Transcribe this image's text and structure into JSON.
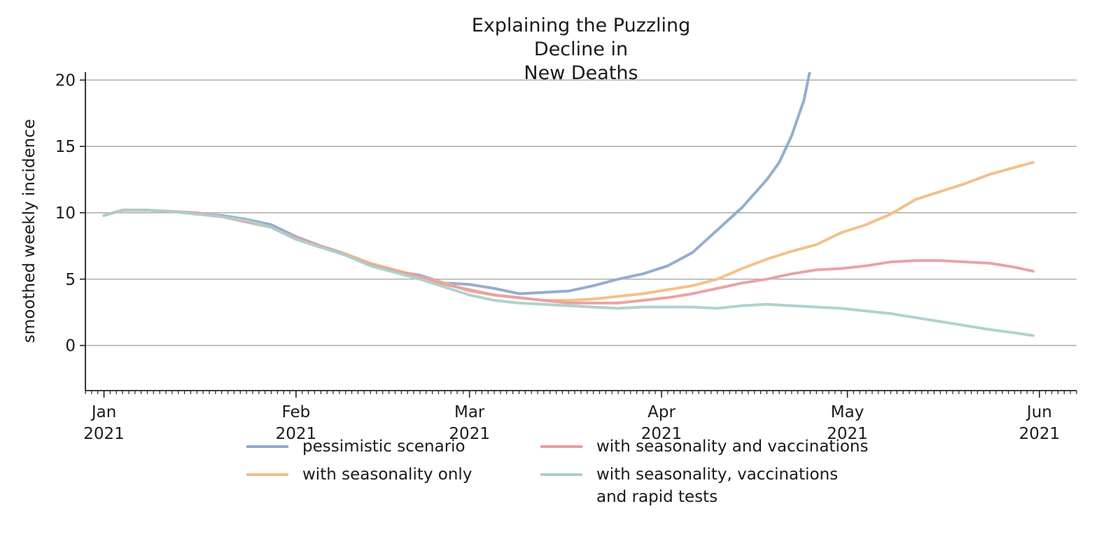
{
  "chart_data": {
    "type": "line",
    "title": "Explaining the Puzzling Decline in\nNew Deaths",
    "ylabel": "smoothed weekly incidence",
    "xlabel": "",
    "ylim": [
      -3.4,
      20.6
    ],
    "xlim": [
      "2020-12-29",
      "2021-06-07"
    ],
    "yticks": [
      0,
      5,
      10,
      15,
      20
    ],
    "grid": "y",
    "legend_position": "bottom",
    "xticks": [
      {
        "date": "2021-01-01",
        "label": "Jan\n2021"
      },
      {
        "date": "2021-02-01",
        "label": "Feb\n2021"
      },
      {
        "date": "2021-03-01",
        "label": "Mar\n2021"
      },
      {
        "date": "2021-04-01",
        "label": "Apr\n2021"
      },
      {
        "date": "2021-05-01",
        "label": "May\n2021"
      },
      {
        "date": "2021-06-01",
        "label": "Jun\n2021"
      }
    ],
    "series": [
      {
        "name": "pessimistic scenario",
        "color": "#8eaacb",
        "points": [
          [
            "2021-01-01",
            9.8
          ],
          [
            "2021-01-04",
            10.2
          ],
          [
            "2021-01-08",
            10.2
          ],
          [
            "2021-01-12",
            10.1
          ],
          [
            "2021-01-16",
            9.9
          ],
          [
            "2021-01-20",
            9.8
          ],
          [
            "2021-01-24",
            9.5
          ],
          [
            "2021-01-28",
            9.1
          ],
          [
            "2021-02-01",
            8.2
          ],
          [
            "2021-02-05",
            7.5
          ],
          [
            "2021-02-09",
            6.9
          ],
          [
            "2021-02-13",
            6.1
          ],
          [
            "2021-02-17",
            5.6
          ],
          [
            "2021-02-21",
            5.3
          ],
          [
            "2021-02-25",
            4.7
          ],
          [
            "2021-03-01",
            4.6
          ],
          [
            "2021-03-05",
            4.3
          ],
          [
            "2021-03-09",
            3.9
          ],
          [
            "2021-03-13",
            4.0
          ],
          [
            "2021-03-17",
            4.1
          ],
          [
            "2021-03-21",
            4.5
          ],
          [
            "2021-03-25",
            5.0
          ],
          [
            "2021-03-29",
            5.4
          ],
          [
            "2021-04-02",
            6.0
          ],
          [
            "2021-04-06",
            7.0
          ],
          [
            "2021-04-10",
            8.7
          ],
          [
            "2021-04-14",
            10.4
          ],
          [
            "2021-04-18",
            12.5
          ],
          [
            "2021-04-20",
            13.8
          ],
          [
            "2021-04-22",
            15.8
          ],
          [
            "2021-04-24",
            18.5
          ],
          [
            "2021-04-25",
            20.8
          ]
        ]
      },
      {
        "name": "with seasonality only",
        "color": "#f3bd84",
        "points": [
          [
            "2021-01-01",
            9.8
          ],
          [
            "2021-01-04",
            10.2
          ],
          [
            "2021-01-08",
            10.2
          ],
          [
            "2021-01-12",
            10.1
          ],
          [
            "2021-01-16",
            9.9
          ],
          [
            "2021-01-20",
            9.7
          ],
          [
            "2021-01-24",
            9.4
          ],
          [
            "2021-01-28",
            8.9
          ],
          [
            "2021-02-01",
            8.0
          ],
          [
            "2021-02-05",
            7.4
          ],
          [
            "2021-02-09",
            6.9
          ],
          [
            "2021-02-13",
            6.2
          ],
          [
            "2021-02-17",
            5.7
          ],
          [
            "2021-02-21",
            5.2
          ],
          [
            "2021-02-25",
            4.7
          ],
          [
            "2021-03-01",
            4.1
          ],
          [
            "2021-03-05",
            3.8
          ],
          [
            "2021-03-09",
            3.6
          ],
          [
            "2021-03-13",
            3.4
          ],
          [
            "2021-03-17",
            3.4
          ],
          [
            "2021-03-21",
            3.5
          ],
          [
            "2021-03-25",
            3.7
          ],
          [
            "2021-03-29",
            3.9
          ],
          [
            "2021-04-02",
            4.2
          ],
          [
            "2021-04-06",
            4.5
          ],
          [
            "2021-04-10",
            5.0
          ],
          [
            "2021-04-14",
            5.8
          ],
          [
            "2021-04-18",
            6.5
          ],
          [
            "2021-04-22",
            7.1
          ],
          [
            "2021-04-26",
            7.6
          ],
          [
            "2021-04-30",
            8.5
          ],
          [
            "2021-05-04",
            9.1
          ],
          [
            "2021-05-08",
            9.9
          ],
          [
            "2021-05-12",
            11.0
          ],
          [
            "2021-05-16",
            11.6
          ],
          [
            "2021-05-20",
            12.2
          ],
          [
            "2021-05-24",
            12.9
          ],
          [
            "2021-05-31",
            13.8
          ]
        ]
      },
      {
        "name": "with seasonality and vaccinations",
        "color": "#ea9ea0",
        "points": [
          [
            "2021-01-01",
            9.8
          ],
          [
            "2021-01-04",
            10.2
          ],
          [
            "2021-01-08",
            10.2
          ],
          [
            "2021-01-12",
            10.1
          ],
          [
            "2021-01-16",
            10.0
          ],
          [
            "2021-01-20",
            9.7
          ],
          [
            "2021-01-24",
            9.3
          ],
          [
            "2021-01-28",
            8.9
          ],
          [
            "2021-02-01",
            8.1
          ],
          [
            "2021-02-05",
            7.5
          ],
          [
            "2021-02-09",
            6.8
          ],
          [
            "2021-02-13",
            6.1
          ],
          [
            "2021-02-17",
            5.6
          ],
          [
            "2021-02-21",
            5.2
          ],
          [
            "2021-02-25",
            4.6
          ],
          [
            "2021-03-01",
            4.2
          ],
          [
            "2021-03-05",
            3.8
          ],
          [
            "2021-03-09",
            3.6
          ],
          [
            "2021-03-13",
            3.4
          ],
          [
            "2021-03-17",
            3.2
          ],
          [
            "2021-03-21",
            3.2
          ],
          [
            "2021-03-25",
            3.2
          ],
          [
            "2021-03-29",
            3.4
          ],
          [
            "2021-04-02",
            3.6
          ],
          [
            "2021-04-06",
            3.9
          ],
          [
            "2021-04-10",
            4.3
          ],
          [
            "2021-04-14",
            4.7
          ],
          [
            "2021-04-18",
            5.0
          ],
          [
            "2021-04-22",
            5.4
          ],
          [
            "2021-04-26",
            5.7
          ],
          [
            "2021-04-30",
            5.8
          ],
          [
            "2021-05-04",
            6.0
          ],
          [
            "2021-05-08",
            6.3
          ],
          [
            "2021-05-12",
            6.4
          ],
          [
            "2021-05-16",
            6.4
          ],
          [
            "2021-05-20",
            6.3
          ],
          [
            "2021-05-24",
            6.2
          ],
          [
            "2021-05-28",
            5.9
          ],
          [
            "2021-05-31",
            5.6
          ]
        ]
      },
      {
        "name": "with seasonality, vaccinations\nand rapid tests",
        "color": "#abd0cc",
        "points": [
          [
            "2021-01-01",
            9.8
          ],
          [
            "2021-01-04",
            10.2
          ],
          [
            "2021-01-08",
            10.2
          ],
          [
            "2021-01-12",
            10.1
          ],
          [
            "2021-01-16",
            9.9
          ],
          [
            "2021-01-20",
            9.7
          ],
          [
            "2021-01-24",
            9.4
          ],
          [
            "2021-01-28",
            8.9
          ],
          [
            "2021-02-01",
            8.0
          ],
          [
            "2021-02-05",
            7.4
          ],
          [
            "2021-02-09",
            6.8
          ],
          [
            "2021-02-13",
            6.0
          ],
          [
            "2021-02-17",
            5.5
          ],
          [
            "2021-02-21",
            5.0
          ],
          [
            "2021-02-25",
            4.4
          ],
          [
            "2021-03-01",
            3.8
          ],
          [
            "2021-03-05",
            3.4
          ],
          [
            "2021-03-09",
            3.2
          ],
          [
            "2021-03-13",
            3.1
          ],
          [
            "2021-03-17",
            3.0
          ],
          [
            "2021-03-21",
            2.9
          ],
          [
            "2021-03-25",
            2.8
          ],
          [
            "2021-03-29",
            2.9
          ],
          [
            "2021-04-02",
            2.9
          ],
          [
            "2021-04-06",
            2.9
          ],
          [
            "2021-04-10",
            2.8
          ],
          [
            "2021-04-14",
            3.0
          ],
          [
            "2021-04-18",
            3.1
          ],
          [
            "2021-04-22",
            3.0
          ],
          [
            "2021-04-26",
            2.9
          ],
          [
            "2021-04-30",
            2.8
          ],
          [
            "2021-05-04",
            2.6
          ],
          [
            "2021-05-08",
            2.4
          ],
          [
            "2021-05-12",
            2.1
          ],
          [
            "2021-05-16",
            1.8
          ],
          [
            "2021-05-20",
            1.5
          ],
          [
            "2021-05-24",
            1.2
          ],
          [
            "2021-05-28",
            0.95
          ],
          [
            "2021-05-31",
            0.75
          ]
        ]
      }
    ]
  }
}
